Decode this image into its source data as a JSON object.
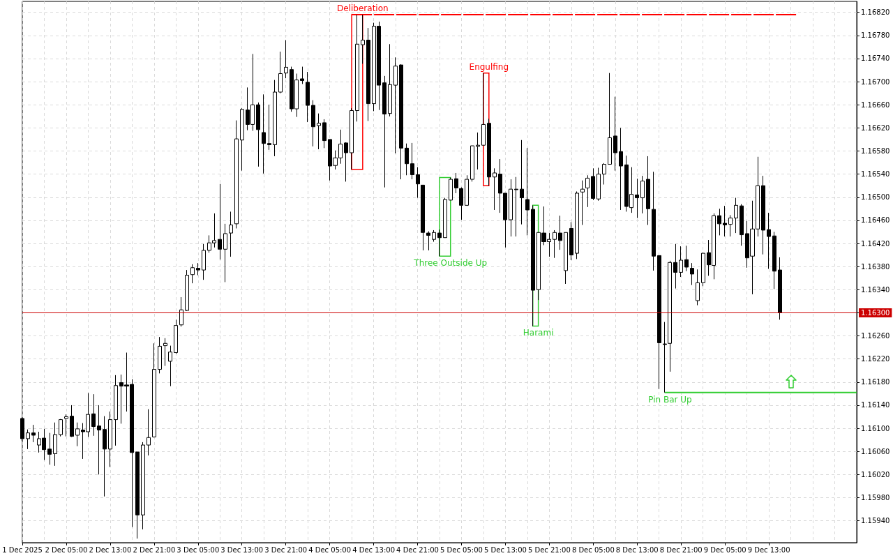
{
  "chart_data": {
    "type": "candlestick",
    "color": "#000000",
    "categories": [
      "1 Dec 2025",
      null,
      null,
      null,
      null,
      null,
      null,
      null,
      "2 Dec 05:00",
      null,
      null,
      null,
      null,
      null,
      null,
      null,
      "2 Dec 13:00",
      null,
      null,
      null,
      null,
      null,
      null,
      null,
      "2 Dec 21:00",
      null,
      null,
      null,
      null,
      null,
      null,
      null,
      "3 Dec 05:00",
      null,
      null,
      null,
      null,
      null,
      null,
      null,
      "3 Dec 13:00",
      null,
      null,
      null,
      null,
      null,
      null,
      null,
      "3 Dec 21:00",
      null,
      null,
      null,
      null,
      null,
      null,
      null,
      "4 Dec 05:00",
      null,
      null,
      null,
      null,
      null,
      null,
      null,
      "4 Dec 13:00",
      null,
      null,
      null,
      null,
      null,
      null,
      null,
      "4 Dec 21:00",
      null,
      null,
      null,
      null,
      null,
      null,
      null,
      "5 Dec 05:00",
      null,
      null,
      null,
      null,
      null,
      null,
      null,
      "5 Dec 13:00",
      null,
      null,
      null,
      null,
      null,
      null,
      null,
      "5 Dec 21:00",
      null,
      null,
      null,
      null,
      null,
      null,
      null,
      "8 Dec 05:00",
      null,
      null,
      null,
      null,
      null,
      null,
      null,
      "8 Dec 13:00",
      null,
      null,
      null,
      null,
      null,
      null,
      null,
      "8 Dec 21:00",
      null,
      null,
      null,
      null,
      null,
      null,
      null,
      "9 Dec 05:00",
      null,
      null,
      null,
      null,
      null,
      null,
      null,
      "9 Dec 13:00",
      null,
      null,
      null,
      null,
      null,
      null,
      null,
      null,
      null,
      null,
      null,
      null,
      null,
      null,
      null,
      null
    ],
    "ohlc": [
      [
        1.16117,
        1.16119,
        1.16078,
        1.16082
      ],
      [
        1.16082,
        1.16098,
        1.16064,
        1.16092
      ],
      [
        1.16092,
        1.16106,
        1.16076,
        1.16088
      ],
      [
        1.16071,
        1.16094,
        1.16058,
        1.16082
      ],
      [
        1.16083,
        1.16099,
        1.16045,
        1.16063
      ],
      [
        1.16064,
        1.16092,
        1.16037,
        1.16055
      ],
      [
        1.16056,
        1.1611,
        1.16035,
        1.16089
      ],
      [
        1.16089,
        1.16116,
        1.16086,
        1.16115
      ],
      [
        1.16117,
        1.16124,
        1.16086,
        1.1612
      ],
      [
        1.16121,
        1.1614,
        1.16085,
        1.16086
      ],
      [
        1.16088,
        1.1611,
        1.16069,
        1.16099
      ],
      [
        1.16097,
        1.16109,
        1.16047,
        1.16094
      ],
      [
        1.16094,
        1.16161,
        1.16085,
        1.16124
      ],
      [
        1.16125,
        1.16159,
        1.16087,
        1.16103
      ],
      [
        1.16104,
        1.1614,
        1.1602,
        1.16097
      ],
      [
        1.16098,
        1.16121,
        1.15982,
        1.16064
      ],
      [
        1.16064,
        1.16129,
        1.16033,
        1.16115
      ],
      [
        1.16115,
        1.16192,
        1.1607,
        1.16174
      ],
      [
        1.16179,
        1.16193,
        1.16108,
        1.16173
      ],
      [
        1.16175,
        1.16231,
        1.16129,
        1.16173
      ],
      [
        1.16176,
        1.16185,
        1.15929,
        1.16058
      ],
      [
        1.16059,
        1.16059,
        1.15909,
        1.1595
      ],
      [
        1.1595,
        1.16076,
        1.15925,
        1.16071
      ],
      [
        1.16071,
        1.16133,
        1.16053,
        1.16084
      ],
      [
        1.16085,
        1.16247,
        1.16084,
        1.16202
      ],
      [
        1.16202,
        1.16258,
        1.16195,
        1.16242
      ],
      [
        1.16243,
        1.16256,
        1.16208,
        1.16247
      ],
      [
        1.16216,
        1.16243,
        1.16173,
        1.16232
      ],
      [
        1.16231,
        1.16288,
        1.16229,
        1.16278
      ],
      [
        1.16279,
        1.16327,
        1.16276,
        1.16305
      ],
      [
        1.16304,
        1.16374,
        1.16303,
        1.16365
      ],
      [
        1.16366,
        1.16384,
        1.16351,
        1.16378
      ],
      [
        1.16377,
        1.16386,
        1.16365,
        1.16374
      ],
      [
        1.16374,
        1.16419,
        1.16357,
        1.16408
      ],
      [
        1.16408,
        1.16434,
        1.16404,
        1.16421
      ],
      [
        1.16421,
        1.16472,
        1.16413,
        1.16425
      ],
      [
        1.16427,
        1.16523,
        1.16392,
        1.1641
      ],
      [
        1.1641,
        1.16454,
        1.16353,
        1.16437
      ],
      [
        1.16438,
        1.16475,
        1.16397,
        1.16452
      ],
      [
        1.16454,
        1.16633,
        1.16446,
        1.16601
      ],
      [
        1.16599,
        1.16654,
        1.16546,
        1.16652
      ],
      [
        1.16651,
        1.1669,
        1.16616,
        1.16626
      ],
      [
        1.16626,
        1.16748,
        1.16615,
        1.1666
      ],
      [
        1.1666,
        1.16664,
        1.16553,
        1.16617
      ],
      [
        1.16612,
        1.16678,
        1.16541,
        1.16593
      ],
      [
        1.16593,
        1.1666,
        1.16582,
        1.16591
      ],
      [
        1.16591,
        1.16703,
        1.16571,
        1.16682
      ],
      [
        1.16682,
        1.16752,
        1.1668,
        1.16714
      ],
      [
        1.16715,
        1.16772,
        1.16706,
        1.16725
      ],
      [
        1.16721,
        1.16726,
        1.16648,
        1.16653
      ],
      [
        1.16653,
        1.16714,
        1.16639,
        1.16703
      ],
      [
        1.16705,
        1.16726,
        1.16696,
        1.16702
      ],
      [
        1.16699,
        1.16717,
        1.1663,
        1.16659
      ],
      [
        1.16659,
        1.16668,
        1.16588,
        1.16622
      ],
      [
        1.16624,
        1.16645,
        1.16583,
        1.16628
      ],
      [
        1.16629,
        1.16635,
        1.16585,
        1.16598
      ],
      [
        1.166,
        1.166,
        1.16529,
        1.16554
      ],
      [
        1.16555,
        1.16581,
        1.16548,
        1.16568
      ],
      [
        1.16568,
        1.16617,
        1.16558,
        1.16592
      ],
      [
        1.16594,
        1.16595,
        1.16527,
        1.16577
      ],
      [
        1.16577,
        1.16654,
        1.16548,
        1.1665
      ],
      [
        1.1665,
        1.16816,
        1.16631,
        1.16765
      ],
      [
        1.16764,
        1.16816,
        1.16731,
        1.16772
      ],
      [
        1.16772,
        1.16793,
        1.16632,
        1.16662
      ],
      [
        1.16662,
        1.16802,
        1.16649,
        1.16796
      ],
      [
        1.16796,
        1.16804,
        1.16651,
        1.16694
      ],
      [
        1.16698,
        1.1671,
        1.16517,
        1.16644
      ],
      [
        1.16645,
        1.16765,
        1.1664,
        1.16695
      ],
      [
        1.16694,
        1.16742,
        1.16576,
        1.16727
      ],
      [
        1.16729,
        1.1673,
        1.16531,
        1.16585
      ],
      [
        1.16585,
        1.16593,
        1.16538,
        1.16558
      ],
      [
        1.16558,
        1.16594,
        1.16531,
        1.16539
      ],
      [
        1.16539,
        1.16552,
        1.16499,
        1.16523
      ],
      [
        1.16521,
        1.16521,
        1.16408,
        1.16439
      ],
      [
        1.16438,
        1.16441,
        1.16408,
        1.16434
      ],
      [
        1.16427,
        1.16443,
        1.16423,
        1.16439
      ],
      [
        1.16438,
        1.16444,
        1.16398,
        1.1643
      ],
      [
        1.1643,
        1.16499,
        1.1643,
        1.16496
      ],
      [
        1.16495,
        1.16534,
        1.16495,
        1.16531
      ],
      [
        1.16532,
        1.16542,
        1.16507,
        1.16516
      ],
      [
        1.16515,
        1.16517,
        1.16461,
        1.16486
      ],
      [
        1.16486,
        1.16538,
        1.16485,
        1.16531
      ],
      [
        1.16531,
        1.16589,
        1.16527,
        1.16589
      ],
      [
        1.16588,
        1.16612,
        1.16548,
        1.1659
      ],
      [
        1.1659,
        1.16715,
        1.1659,
        1.16626
      ],
      [
        1.16628,
        1.16636,
        1.1652,
        1.16535
      ],
      [
        1.16535,
        1.1655,
        1.16478,
        1.16542
      ],
      [
        1.1654,
        1.16566,
        1.16473,
        1.16507
      ],
      [
        1.16507,
        1.16507,
        1.16413,
        1.16461
      ],
      [
        1.16461,
        1.16531,
        1.16432,
        1.16514
      ],
      [
        1.16514,
        1.16535,
        1.16432,
        1.16513
      ],
      [
        1.16514,
        1.16599,
        1.16453,
        1.16499
      ],
      [
        1.16496,
        1.16585,
        1.16434,
        1.16478
      ],
      [
        1.16479,
        1.16486,
        1.16277,
        1.16339
      ],
      [
        1.1634,
        1.16439,
        1.16322,
        1.16439
      ],
      [
        1.16438,
        1.16484,
        1.16417,
        1.16423
      ],
      [
        1.16423,
        1.16438,
        1.16397,
        1.16427
      ],
      [
        1.16427,
        1.16443,
        1.16395,
        1.16439
      ],
      [
        1.16438,
        1.16468,
        1.16409,
        1.16425
      ],
      [
        1.16373,
        1.16439,
        1.1635,
        1.16439
      ],
      [
        1.16446,
        1.16457,
        1.16391,
        1.164
      ],
      [
        1.16403,
        1.1651,
        1.16393,
        1.16507
      ],
      [
        1.16509,
        1.16529,
        1.16452,
        1.16514
      ],
      [
        1.16516,
        1.16538,
        1.16483,
        1.16533
      ],
      [
        1.16536,
        1.1655,
        1.16495,
        1.16498
      ],
      [
        1.16497,
        1.16551,
        1.16494,
        1.1654
      ],
      [
        1.1654,
        1.16559,
        1.16522,
        1.16557
      ],
      [
        1.16557,
        1.16715,
        1.16557,
        1.16603
      ],
      [
        1.16606,
        1.16674,
        1.16546,
        1.16577
      ],
      [
        1.16579,
        1.1662,
        1.16478,
        1.16554
      ],
      [
        1.16556,
        1.16572,
        1.16475,
        1.16484
      ],
      [
        1.16482,
        1.16552,
        1.16473,
        1.16505
      ],
      [
        1.16504,
        1.16532,
        1.16464,
        1.16499
      ],
      [
        1.16499,
        1.16537,
        1.16472,
        1.16528
      ],
      [
        1.16531,
        1.16571,
        1.16452,
        1.1648
      ],
      [
        1.16479,
        1.16544,
        1.16373,
        1.16398
      ],
      [
        1.16399,
        1.16399,
        1.16168,
        1.16248
      ],
      [
        1.16246,
        1.16284,
        1.16162,
        1.16245
      ],
      [
        1.16247,
        1.1639,
        1.16198,
        1.16387
      ],
      [
        1.16387,
        1.16419,
        1.16342,
        1.1637
      ],
      [
        1.1637,
        1.16415,
        1.16362,
        1.16391
      ],
      [
        1.16392,
        1.16416,
        1.16372,
        1.16379
      ],
      [
        1.16377,
        1.16386,
        1.16348,
        1.16367
      ],
      [
        1.16321,
        1.16375,
        1.16313,
        1.16352
      ],
      [
        1.16352,
        1.16404,
        1.16346,
        1.16403
      ],
      [
        1.16404,
        1.16426,
        1.16364,
        1.16383
      ],
      [
        1.16382,
        1.16472,
        1.16358,
        1.16468
      ],
      [
        1.16468,
        1.1648,
        1.16434,
        1.16454
      ],
      [
        1.16455,
        1.16485,
        1.16432,
        1.16452
      ],
      [
        1.16453,
        1.16469,
        1.16432,
        1.16464
      ],
      [
        1.16464,
        1.16499,
        1.16438,
        1.16486
      ],
      [
        1.16485,
        1.16488,
        1.16416,
        1.16435
      ],
      [
        1.16437,
        1.16459,
        1.16378,
        1.16395
      ],
      [
        1.16398,
        1.16494,
        1.16332,
        1.16445
      ],
      [
        1.16445,
        1.1657,
        1.16432,
        1.1652
      ],
      [
        1.1652,
        1.16537,
        1.16401,
        1.16443
      ],
      [
        1.16444,
        1.16473,
        1.16376,
        1.16432
      ],
      [
        1.16433,
        1.1644,
        1.16341,
        1.16372
      ],
      [
        1.16374,
        1.16396,
        1.16288,
        1.163
      ],
      null,
      null,
      null,
      null,
      null,
      null,
      null,
      null,
      null,
      null,
      null,
      null,
      null,
      null
    ],
    "series": [
      {
        "type": "line",
        "color": "#ff0000",
        "line_style": "dashed",
        "marker": "none",
        "values": [
          null,
          null,
          null,
          null,
          null,
          null,
          null,
          null,
          null,
          null,
          null,
          null,
          null,
          null,
          null,
          null,
          null,
          null,
          null,
          null,
          null,
          null,
          null,
          null,
          null,
          null,
          null,
          null,
          null,
          null,
          null,
          null,
          null,
          null,
          null,
          null,
          null,
          null,
          null,
          null,
          null,
          null,
          null,
          null,
          null,
          null,
          null,
          null,
          null,
          null,
          null,
          null,
          null,
          null,
          null,
          null,
          null,
          null,
          null,
          null,
          1.16816,
          1.16816,
          1.16816,
          1.16816,
          1.16816,
          1.16816,
          1.16816,
          1.16816,
          1.16816,
          1.16816,
          1.16816,
          1.16816,
          1.16816,
          1.16816,
          1.16816,
          1.16816,
          1.16816,
          1.16816,
          1.16816,
          1.16816,
          1.16816,
          1.16816,
          1.16816,
          1.16816,
          1.16816,
          1.16816,
          1.16816,
          1.16816,
          1.16816,
          1.16816,
          1.16816,
          1.16816,
          1.16816,
          1.16816,
          1.16816,
          1.16816,
          1.16816,
          1.16816,
          1.16816,
          1.16816,
          1.16816,
          1.16816,
          1.16816,
          1.16816,
          1.16816,
          1.16816,
          1.16816,
          1.16816,
          1.16816,
          1.16816,
          1.16816,
          1.16816,
          1.16816,
          1.16816,
          1.16816,
          1.16816,
          1.16816,
          1.16816,
          1.16816,
          1.16816,
          1.16816,
          1.16816,
          1.16816,
          1.16816,
          1.16816,
          1.16816,
          1.16816,
          1.16816,
          1.16816,
          1.16816,
          1.16816,
          1.16816,
          1.16816,
          1.16816,
          1.16816,
          1.16816,
          1.16816,
          1.16816,
          1.16816,
          1.16816,
          1.16816,
          1.16816,
          null,
          null,
          null,
          null,
          null,
          null,
          null,
          null,
          null,
          null,
          null
        ]
      },
      {
        "type": "line",
        "color": "#32cd32",
        "line_style": "solid",
        "marker": "none",
        "values": [
          null,
          null,
          null,
          null,
          null,
          null,
          null,
          null,
          null,
          null,
          null,
          null,
          null,
          null,
          null,
          null,
          null,
          null,
          null,
          null,
          null,
          null,
          null,
          null,
          null,
          null,
          null,
          null,
          null,
          null,
          null,
          null,
          null,
          null,
          null,
          null,
          null,
          null,
          null,
          null,
          null,
          null,
          null,
          null,
          null,
          null,
          null,
          null,
          null,
          null,
          null,
          null,
          null,
          null,
          null,
          null,
          null,
          null,
          null,
          null,
          null,
          null,
          null,
          null,
          null,
          null,
          null,
          null,
          null,
          null,
          null,
          null,
          null,
          null,
          null,
          null,
          null,
          null,
          null,
          null,
          null,
          null,
          null,
          null,
          null,
          null,
          null,
          null,
          null,
          null,
          null,
          null,
          null,
          null,
          null,
          null,
          null,
          null,
          null,
          null,
          null,
          null,
          null,
          null,
          null,
          null,
          null,
          null,
          null,
          null,
          null,
          null,
          null,
          null,
          null,
          null,
          null,
          1.16162,
          1.16162,
          1.16162,
          1.16162,
          1.16162,
          1.16162,
          1.16162,
          1.16162,
          1.16162,
          1.16162,
          1.16162,
          1.16162,
          1.16162,
          1.16162,
          1.16162,
          1.16162,
          1.16162,
          1.16162,
          1.16162,
          1.16162,
          1.16162,
          1.16162,
          1.16162,
          1.16162,
          1.16162,
          1.16162,
          1.16162,
          1.16162,
          1.16162,
          1.16162,
          1.16162,
          1.16162,
          1.16162,
          1.16162,
          1.16162,
          1.16162
        ]
      }
    ],
    "ylim": [
      1.15902,
      1.16839
    ],
    "yticks": [
      {
        "value": 1.1594,
        "label": "1.15940"
      },
      {
        "value": 1.1598,
        "label": "1.15980"
      },
      {
        "value": 1.1602,
        "label": "1.16020"
      },
      {
        "value": 1.1606,
        "label": "1.16060"
      },
      {
        "value": 1.161,
        "label": "1.16100"
      },
      {
        "value": 1.1614,
        "label": "1.16140"
      },
      {
        "value": 1.1618,
        "label": "1.16180"
      },
      {
        "value": 1.1622,
        "label": "1.16220"
      },
      {
        "value": 1.1626,
        "label": "1.16260"
      },
      {
        "value": 1.163,
        "label": null
      },
      {
        "value": 1.1634,
        "label": "1.16340"
      },
      {
        "value": 1.1638,
        "label": "1.16380"
      },
      {
        "value": 1.1642,
        "label": "1.16420"
      },
      {
        "value": 1.1646,
        "label": "1.16460"
      },
      {
        "value": 1.165,
        "label": "1.16500"
      },
      {
        "value": 1.1654,
        "label": "1.16540"
      },
      {
        "value": 1.1658,
        "label": "1.16580"
      },
      {
        "value": 1.1662,
        "label": "1.16620"
      },
      {
        "value": 1.1666,
        "label": "1.16660"
      },
      {
        "value": 1.167,
        "label": "1.16700"
      },
      {
        "value": 1.1674,
        "label": "1.16740"
      },
      {
        "value": 1.1678,
        "label": "1.16780"
      },
      {
        "value": 1.1682,
        "label": "1.16820"
      }
    ],
    "grid": true,
    "ref_lines": [
      {
        "axis": "y",
        "value": 1.163,
        "label": "1.16300",
        "color": "#cc0000"
      }
    ],
    "annotations": [
      {
        "text": "Deliberation",
        "y": 1.16816
      },
      "Engulfing",
      "Three Outside Up",
      "Harami",
      {
        "text": "Pin Bar Up",
        "y": 1.16162
      }
    ]
  }
}
